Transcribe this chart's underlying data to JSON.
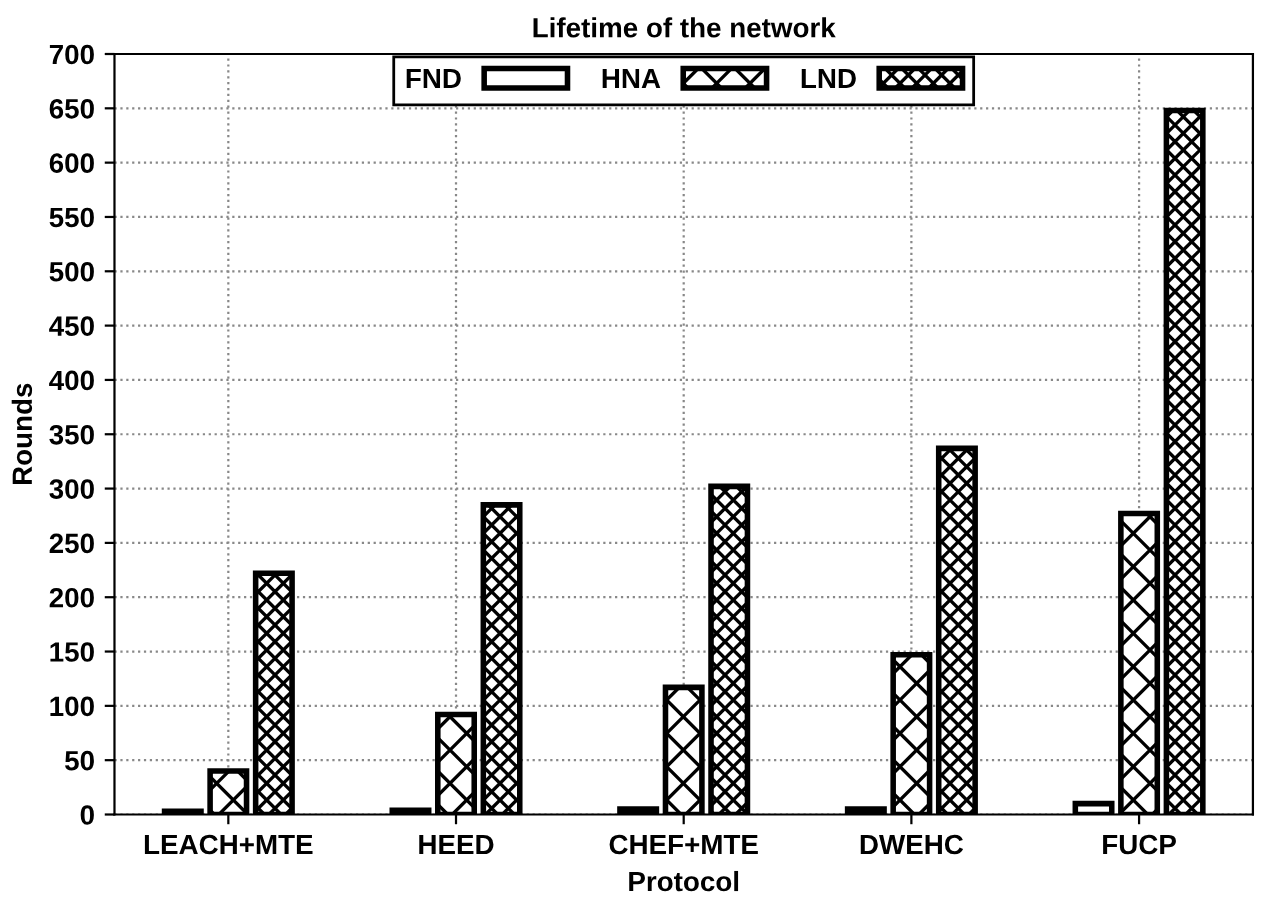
{
  "chart_data": {
    "type": "bar",
    "title": "Lifetime of the network",
    "xlabel": "Protocol",
    "ylabel": "Rounds",
    "categories": [
      "LEACH+MTE",
      "HEED",
      "CHEF+MTE",
      "DWEHC",
      "FUCP"
    ],
    "series": [
      {
        "name": "FND",
        "color": "#000000",
        "values": [
          3,
          4,
          5,
          5,
          10
        ]
      },
      {
        "name": "HNA",
        "color": "#000000",
        "values": [
          40,
          92,
          117,
          147,
          277
        ]
      },
      {
        "name": "LND",
        "color": "#000000",
        "values": [
          222,
          285,
          302,
          337,
          648
        ]
      }
    ],
    "ylim": [
      0,
      700
    ],
    "yticks": [
      0,
      50,
      100,
      150,
      200,
      250,
      300,
      350,
      400,
      450,
      500,
      550,
      600,
      650,
      700
    ],
    "grid": true,
    "legend": "top"
  }
}
